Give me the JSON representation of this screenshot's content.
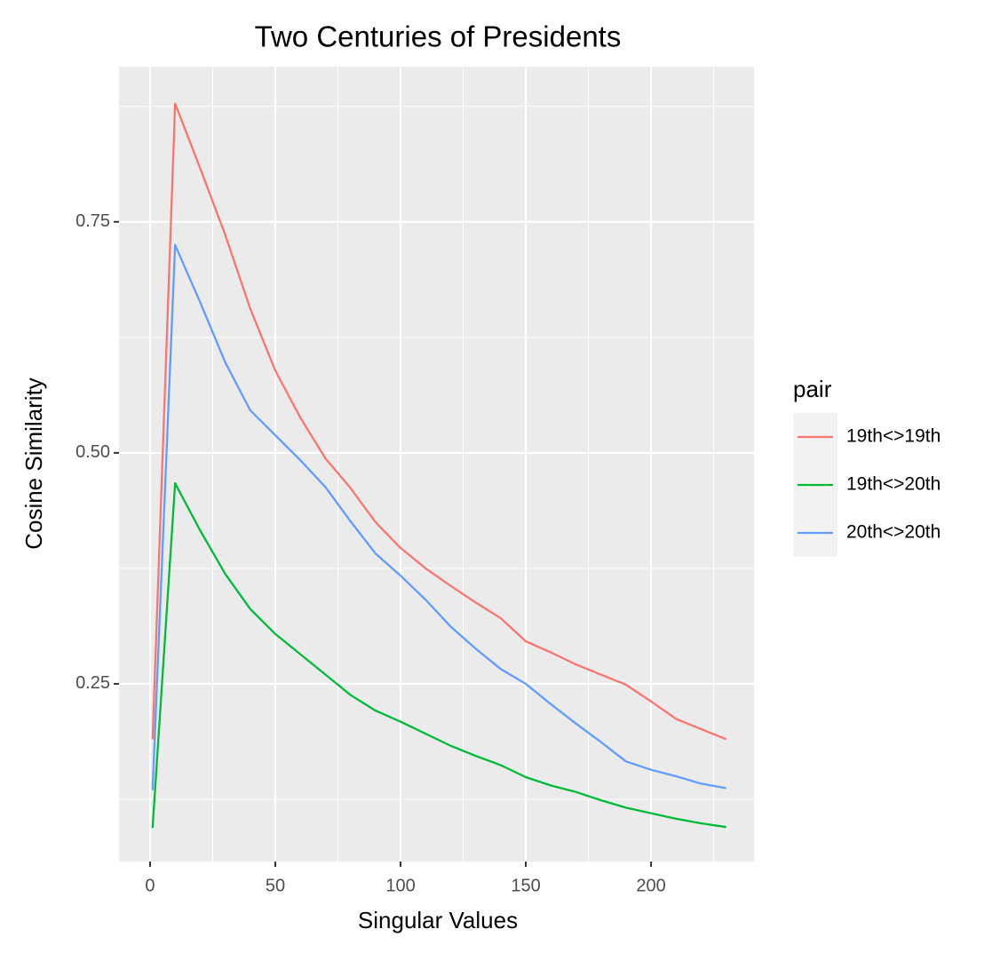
{
  "chart_data": {
    "type": "line",
    "title": "Two Centuries of Presidents",
    "x_label": "Singular Values",
    "y_label": "Cosine Similarity",
    "legend_title": "pair",
    "x": [
      1,
      10,
      20,
      30,
      40,
      50,
      60,
      70,
      80,
      90,
      100,
      110,
      120,
      130,
      140,
      150,
      160,
      170,
      180,
      190,
      200,
      210,
      220,
      230
    ],
    "series": [
      {
        "name": "19th<>19th",
        "color": "#f8766d",
        "values": [
          0.19,
          0.878,
          0.808,
          0.736,
          0.656,
          0.589,
          0.538,
          0.494,
          0.462,
          0.425,
          0.397,
          0.375,
          0.356,
          0.338,
          0.321,
          0.296,
          0.284,
          0.271,
          0.26,
          0.249,
          0.231,
          0.212,
          0.201,
          0.19
        ]
      },
      {
        "name": "19th<>20th",
        "color": "#00ba38",
        "values": [
          0.094,
          0.467,
          0.416,
          0.369,
          0.331,
          0.304,
          0.282,
          0.26,
          0.238,
          0.221,
          0.209,
          0.196,
          0.183,
          0.172,
          0.162,
          0.149,
          0.14,
          0.133,
          0.124,
          0.116,
          0.11,
          0.104,
          0.099,
          0.095
        ]
      },
      {
        "name": "20th<>20th",
        "color": "#619cff",
        "values": [
          0.135,
          0.725,
          0.663,
          0.598,
          0.546,
          0.519,
          0.492,
          0.463,
          0.426,
          0.391,
          0.367,
          0.341,
          0.312,
          0.288,
          0.266,
          0.25,
          0.228,
          0.207,
          0.187,
          0.166,
          0.157,
          0.15,
          0.142,
          0.137
        ]
      }
    ],
    "xlim": [
      -12.4,
      241.1
    ],
    "ylim": [
      0.0577,
      0.918
    ],
    "xticks": [
      0,
      50,
      100,
      150,
      200
    ],
    "yticks": [
      {
        "value": 0.25,
        "label": "0.25"
      },
      {
        "value": 0.5,
        "label": "0.50"
      },
      {
        "value": 0.75,
        "label": "0.75"
      }
    ],
    "x_minor_ticks": [
      25,
      75,
      125,
      175,
      225
    ],
    "y_minor_ticks": [
      0.125,
      0.375,
      0.625,
      0.875
    ],
    "grid": true
  }
}
